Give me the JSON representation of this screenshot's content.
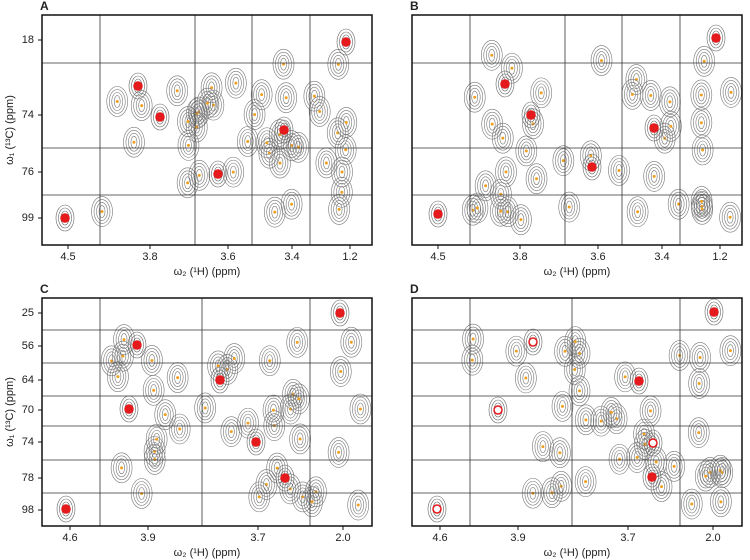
{
  "panels": [
    {
      "label": "A",
      "x_ticks": [
        "4.5",
        "3.8",
        "3.6",
        "3.4",
        "1.2"
      ],
      "y_ticks": [
        "18",
        "74",
        "76",
        "99"
      ],
      "x_label": "ω₂ (¹H) (ppm)",
      "y_label": "ω₁ (¹³C) (ppm)"
    },
    {
      "label": "B",
      "x_ticks": [
        "4.5",
        "3.8",
        "3.6",
        "3.4",
        "1.2"
      ],
      "y_ticks": [],
      "x_label": "ω₂ (¹H) (ppm)",
      "y_label": ""
    },
    {
      "label": "C",
      "x_ticks": [
        "4.6",
        "3.9",
        "3.7",
        "2.0"
      ],
      "y_ticks": [
        "25",
        "56",
        "64",
        "70",
        "74",
        "78",
        "98"
      ],
      "x_label": "ω₂ (¹H) (ppm)",
      "y_label": "ω₁ (¹³C) (ppm)"
    },
    {
      "label": "D",
      "x_ticks": [
        "4.6",
        "3.9",
        "3.7",
        "2.0"
      ],
      "y_ticks": [],
      "x_label": "ω₂ (¹H) (ppm)",
      "y_label": ""
    }
  ]
}
